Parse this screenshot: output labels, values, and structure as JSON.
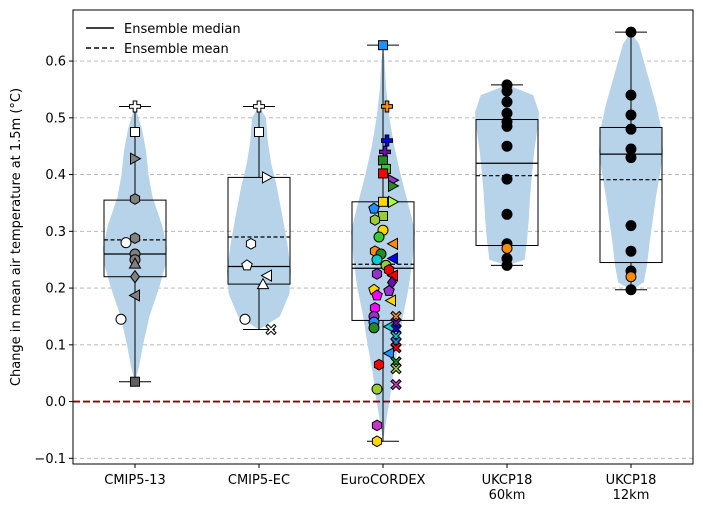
{
  "chart_data": {
    "type": "box-violin",
    "xlabel": "",
    "ylabel": "Change in mean air temperature at 1.5m (°C)",
    "ylim": [
      -0.11,
      0.69
    ],
    "yticks": [
      -0.1,
      0.0,
      0.1,
      0.2,
      0.3,
      0.4,
      0.5,
      0.6
    ],
    "ytick_labels": [
      "−0.1",
      "0.0",
      "0.1",
      "0.2",
      "0.3",
      "0.4",
      "0.5",
      "0.6"
    ],
    "grid": "horizontal dashed",
    "reference_line": {
      "y": 0.0,
      "color": "#8b0000",
      "style": "dashed"
    },
    "legend": {
      "placement": "top-left",
      "entries": [
        {
          "label": "Ensemble median",
          "style": "solid"
        },
        {
          "label": "Ensemble mean",
          "style": "dashed"
        }
      ]
    },
    "colors": {
      "violin": "#b7d3e9",
      "grid": "#b0b0b0",
      "zero_line": "#8b0000"
    },
    "categories": [
      "CMIP5-13",
      "CMIP5-EC",
      "EuroCORDEX",
      "UKCP18\n60km",
      "UKCP18\n12km"
    ],
    "groups": [
      {
        "name": "CMIP5-13",
        "box": {
          "q1": 0.22,
          "median": 0.26,
          "q3": 0.355,
          "mean": 0.285,
          "whisker_low": 0.035,
          "whisker_high": 0.52
        },
        "violin_profile": [
          [
            0.035,
            0.0
          ],
          [
            0.06,
            0.12
          ],
          [
            0.1,
            0.25
          ],
          [
            0.15,
            0.45
          ],
          [
            0.2,
            0.75
          ],
          [
            0.24,
            0.95
          ],
          [
            0.27,
            1.0
          ],
          [
            0.31,
            0.85
          ],
          [
            0.36,
            0.55
          ],
          [
            0.4,
            0.42
          ],
          [
            0.44,
            0.35
          ],
          [
            0.48,
            0.22
          ],
          [
            0.52,
            0.0
          ]
        ],
        "points": [
          {
            "y": 0.52,
            "marker": "plus",
            "color": "#ffffff"
          },
          {
            "y": 0.475,
            "marker": "square",
            "color": "#ffffff"
          },
          {
            "y": 0.428,
            "marker": "tri-right",
            "color": "#808080"
          },
          {
            "y": 0.357,
            "marker": "hexagon",
            "color": "#808080"
          },
          {
            "y": 0.288,
            "marker": "hexagon",
            "color": "#808080"
          },
          {
            "y": 0.28,
            "marker": "circle",
            "color": "#ffffff",
            "dx": -9
          },
          {
            "y": 0.26,
            "marker": "circle",
            "color": "#808080"
          },
          {
            "y": 0.25,
            "marker": "circle",
            "color": "#808080"
          },
          {
            "y": 0.243,
            "marker": "tri-up",
            "color": "#808080"
          },
          {
            "y": 0.22,
            "marker": "diamond",
            "color": "#808080"
          },
          {
            "y": 0.187,
            "marker": "tri-left",
            "color": "#808080"
          },
          {
            "y": 0.145,
            "marker": "circle",
            "color": "#ffffff",
            "dx": -14
          },
          {
            "y": 0.035,
            "marker": "square",
            "color": "#606060"
          }
        ]
      },
      {
        "name": "CMIP5-EC",
        "box": {
          "q1": 0.207,
          "median": 0.238,
          "q3": 0.395,
          "mean": 0.29,
          "whisker_low": 0.127,
          "whisker_high": 0.52
        },
        "violin_profile": [
          [
            0.127,
            0.0
          ],
          [
            0.15,
            0.65
          ],
          [
            0.19,
            0.95
          ],
          [
            0.23,
            1.0
          ],
          [
            0.28,
            0.88
          ],
          [
            0.33,
            0.72
          ],
          [
            0.38,
            0.55
          ],
          [
            0.42,
            0.38
          ],
          [
            0.46,
            0.27
          ],
          [
            0.5,
            0.22
          ],
          [
            0.52,
            0.0
          ]
        ],
        "points": [
          {
            "y": 0.52,
            "marker": "plus",
            "color": "#ffffff"
          },
          {
            "y": 0.475,
            "marker": "square",
            "color": "#ffffff"
          },
          {
            "y": 0.395,
            "marker": "tri-right",
            "color": "#ffffff",
            "dx": 8
          },
          {
            "y": 0.278,
            "marker": "hexagon",
            "color": "#ffffff",
            "dx": -8
          },
          {
            "y": 0.24,
            "marker": "pentagon",
            "color": "#ffffff",
            "dx": -12
          },
          {
            "y": 0.222,
            "marker": "tri-left",
            "color": "#ffffff",
            "dx": 8
          },
          {
            "y": 0.207,
            "marker": "tri-up",
            "color": "#ffffff",
            "dx": 4
          },
          {
            "y": 0.145,
            "marker": "circle",
            "color": "#ffffff",
            "dx": -14
          },
          {
            "y": 0.127,
            "marker": "x",
            "color": "#ffffff",
            "dx": 12
          }
        ]
      },
      {
        "name": "EuroCORDEX",
        "box": {
          "q1": 0.143,
          "median": 0.235,
          "q3": 0.352,
          "mean": 0.242,
          "whisker_low": -0.07,
          "whisker_high": 0.628
        },
        "violin_profile": [
          [
            -0.07,
            0.0
          ],
          [
            -0.04,
            0.08
          ],
          [
            0.0,
            0.2
          ],
          [
            0.05,
            0.32
          ],
          [
            0.1,
            0.48
          ],
          [
            0.15,
            0.62
          ],
          [
            0.2,
            0.8
          ],
          [
            0.25,
            0.92
          ],
          [
            0.3,
            1.0
          ],
          [
            0.35,
            0.78
          ],
          [
            0.4,
            0.55
          ],
          [
            0.45,
            0.35
          ],
          [
            0.5,
            0.2
          ],
          [
            0.55,
            0.1
          ],
          [
            0.6,
            0.05
          ],
          [
            0.628,
            0.0
          ]
        ],
        "points": [
          {
            "y": 0.628,
            "marker": "square",
            "color": "#1e90ff"
          },
          {
            "y": 0.52,
            "marker": "plus",
            "color": "#ff8c00",
            "dx": 4
          },
          {
            "y": 0.46,
            "marker": "plus",
            "color": "#0000ff",
            "dx": 4
          },
          {
            "y": 0.44,
            "marker": "plus",
            "color": "#6a0dad",
            "dx": 2
          },
          {
            "y": 0.425,
            "marker": "square",
            "color": "#228b22"
          },
          {
            "y": 0.41,
            "marker": "square",
            "color": "#32cd32",
            "dx": 3
          },
          {
            "y": 0.402,
            "marker": "square",
            "color": "#ff0000"
          },
          {
            "y": 0.39,
            "marker": "tri-right",
            "color": "#9932cc",
            "dx": 10
          },
          {
            "y": 0.38,
            "marker": "tri-right",
            "color": "#228b22",
            "dx": 10
          },
          {
            "y": 0.352,
            "marker": "tri-right",
            "color": "#adff2f",
            "dx": 10
          },
          {
            "y": 0.352,
            "marker": "square",
            "color": "#ffd700"
          },
          {
            "y": 0.327,
            "marker": "square",
            "color": "#9acd32"
          },
          {
            "y": 0.32,
            "marker": "hexagon",
            "color": "#9acd32",
            "dx": -8
          },
          {
            "y": 0.34,
            "marker": "pentagon",
            "color": "#1e90ff",
            "dx": -9
          },
          {
            "y": 0.302,
            "marker": "circle",
            "color": "#ffd700"
          },
          {
            "y": 0.29,
            "marker": "circle",
            "color": "#32cd32",
            "dx": -4
          },
          {
            "y": 0.278,
            "marker": "tri-left",
            "color": "#ff8c00",
            "dx": 10
          },
          {
            "y": 0.265,
            "marker": "hexagon",
            "color": "#ff8c00",
            "dx": -8
          },
          {
            "y": 0.26,
            "marker": "circle",
            "color": "#228b22",
            "dx": -2
          },
          {
            "y": 0.25,
            "marker": "circle",
            "color": "#00ced1",
            "dx": -6
          },
          {
            "y": 0.252,
            "marker": "tri-left",
            "color": "#0000ff",
            "dx": 10
          },
          {
            "y": 0.24,
            "marker": "circle",
            "color": "#9acd32",
            "dx": 3
          },
          {
            "y": 0.232,
            "marker": "hexagon",
            "color": "#ff0000",
            "dx": 6
          },
          {
            "y": 0.225,
            "marker": "hexagon",
            "color": "#9932cc",
            "dx": -6
          },
          {
            "y": 0.222,
            "marker": "tri-left",
            "color": "#ff0000",
            "dx": 10
          },
          {
            "y": 0.21,
            "marker": "diamond",
            "color": "#6a0dad",
            "dx": 9
          },
          {
            "y": 0.197,
            "marker": "pentagon",
            "color": "#ffd700",
            "dx": -9
          },
          {
            "y": 0.195,
            "marker": "pentagon",
            "color": "#9932cc",
            "dx": 6
          },
          {
            "y": 0.187,
            "marker": "pentagon",
            "color": "#ff00ff",
            "dx": -6
          },
          {
            "y": 0.178,
            "marker": "tri-left",
            "color": "#ffd700",
            "dx": 8
          },
          {
            "y": 0.165,
            "marker": "hexagon",
            "color": "#ff00ff",
            "dx": -8
          },
          {
            "y": 0.15,
            "marker": "circle",
            "color": "#9932cc",
            "dx": -9
          },
          {
            "y": 0.15,
            "marker": "x",
            "color": "#ff8c00",
            "dx": 13
          },
          {
            "y": 0.14,
            "marker": "circle",
            "color": "#1e90ff",
            "dx": -9
          },
          {
            "y": 0.138,
            "marker": "x",
            "color": "#6a0dad",
            "dx": 13
          },
          {
            "y": 0.132,
            "marker": "tri-left",
            "color": "#00ced1",
            "dx": 6
          },
          {
            "y": 0.13,
            "marker": "circle",
            "color": "#228b22",
            "dx": -9
          },
          {
            "y": 0.128,
            "marker": "x",
            "color": "#0000ff",
            "dx": 13
          },
          {
            "y": 0.115,
            "marker": "x",
            "color": "#00ced1",
            "dx": 13
          },
          {
            "y": 0.105,
            "marker": "x",
            "color": "#1e90ff",
            "dx": 13
          },
          {
            "y": 0.095,
            "marker": "x",
            "color": "#ff0000",
            "dx": 13
          },
          {
            "y": 0.085,
            "marker": "tri-left",
            "color": "#1e90ff",
            "dx": 6
          },
          {
            "y": 0.07,
            "marker": "x",
            "color": "#228b22",
            "dx": 13
          },
          {
            "y": 0.065,
            "marker": "hexagon",
            "color": "#ff0000",
            "dx": -4
          },
          {
            "y": 0.058,
            "marker": "x",
            "color": "#9acd32",
            "dx": 13
          },
          {
            "y": 0.03,
            "marker": "x",
            "color": "#cc33cc",
            "dx": 13
          },
          {
            "y": 0.022,
            "marker": "circle",
            "color": "#9acd32",
            "dx": -6
          },
          {
            "y": -0.042,
            "marker": "hexagon",
            "color": "#cc33cc",
            "dx": -6
          },
          {
            "y": -0.07,
            "marker": "hexagon",
            "color": "#ffd700",
            "dx": -6
          }
        ]
      },
      {
        "name": "UKCP18 60km",
        "box": {
          "q1": 0.275,
          "median": 0.42,
          "q3": 0.497,
          "mean": 0.398,
          "whisker_low": 0.24,
          "whisker_high": 0.558
        },
        "violin_profile": [
          [
            0.24,
            0.0
          ],
          [
            0.25,
            0.55
          ],
          [
            0.28,
            0.62
          ],
          [
            0.32,
            0.68
          ],
          [
            0.36,
            0.72
          ],
          [
            0.4,
            0.78
          ],
          [
            0.44,
            0.85
          ],
          [
            0.48,
            0.95
          ],
          [
            0.51,
            1.0
          ],
          [
            0.54,
            0.82
          ],
          [
            0.558,
            0.0
          ]
        ],
        "points": [
          {
            "y": 0.558,
            "marker": "circle",
            "color": "#000000"
          },
          {
            "y": 0.547,
            "marker": "circle",
            "color": "#000000"
          },
          {
            "y": 0.528,
            "marker": "circle",
            "color": "#000000"
          },
          {
            "y": 0.508,
            "marker": "circle",
            "color": "#000000"
          },
          {
            "y": 0.493,
            "marker": "circle",
            "color": "#000000"
          },
          {
            "y": 0.485,
            "marker": "circle",
            "color": "#000000"
          },
          {
            "y": 0.45,
            "marker": "circle",
            "color": "#000000"
          },
          {
            "y": 0.392,
            "marker": "circle",
            "color": "#000000"
          },
          {
            "y": 0.33,
            "marker": "circle",
            "color": "#000000"
          },
          {
            "y": 0.278,
            "marker": "circle",
            "color": "#000000"
          },
          {
            "y": 0.27,
            "marker": "circle",
            "color": "#ff8c00"
          },
          {
            "y": 0.252,
            "marker": "circle",
            "color": "#000000"
          },
          {
            "y": 0.24,
            "marker": "circle",
            "color": "#000000"
          }
        ]
      },
      {
        "name": "UKCP18 12km",
        "box": {
          "q1": 0.245,
          "median": 0.436,
          "q3": 0.483,
          "mean": 0.391,
          "whisker_low": 0.197,
          "whisker_high": 0.651
        },
        "violin_profile": [
          [
            0.197,
            0.0
          ],
          [
            0.21,
            0.4
          ],
          [
            0.24,
            0.5
          ],
          [
            0.28,
            0.58
          ],
          [
            0.32,
            0.68
          ],
          [
            0.36,
            0.78
          ],
          [
            0.4,
            0.9
          ],
          [
            0.44,
            1.0
          ],
          [
            0.48,
            0.95
          ],
          [
            0.52,
            0.8
          ],
          [
            0.56,
            0.6
          ],
          [
            0.6,
            0.4
          ],
          [
            0.63,
            0.25
          ],
          [
            0.651,
            0.0
          ]
        ],
        "points": [
          {
            "y": 0.651,
            "marker": "circle",
            "color": "#000000"
          },
          {
            "y": 0.54,
            "marker": "circle",
            "color": "#000000"
          },
          {
            "y": 0.505,
            "marker": "circle",
            "color": "#000000"
          },
          {
            "y": 0.48,
            "marker": "circle",
            "color": "#000000"
          },
          {
            "y": 0.445,
            "marker": "circle",
            "color": "#000000"
          },
          {
            "y": 0.43,
            "marker": "circle",
            "color": "#000000"
          },
          {
            "y": 0.31,
            "marker": "circle",
            "color": "#000000"
          },
          {
            "y": 0.265,
            "marker": "circle",
            "color": "#000000"
          },
          {
            "y": 0.23,
            "marker": "circle",
            "color": "#000000"
          },
          {
            "y": 0.22,
            "marker": "circle",
            "color": "#ff8c00"
          },
          {
            "y": 0.197,
            "marker": "circle",
            "color": "#000000"
          }
        ]
      }
    ]
  }
}
